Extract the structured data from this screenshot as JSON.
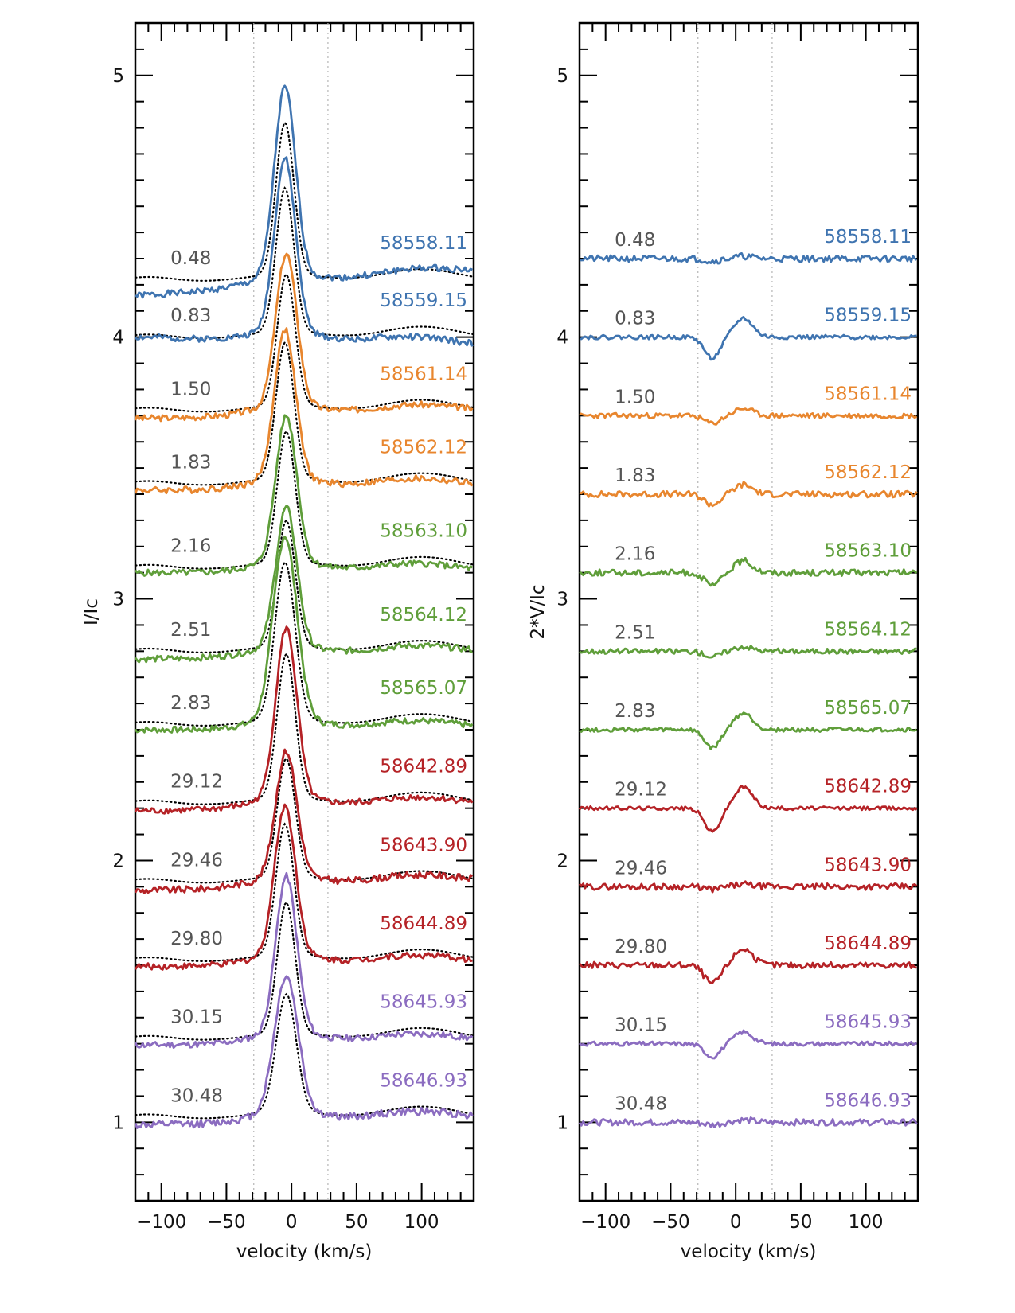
{
  "chart_data": [
    {
      "type": "line",
      "panel": "stokes-I",
      "xlabel": "velocity (km/s)",
      "ylabel": "I/Ic",
      "xlim": [
        -120,
        140
      ],
      "ylim": [
        0.7,
        5.2
      ],
      "xticks": [
        -100,
        -50,
        0,
        50,
        100
      ],
      "xtick_labels": [
        "−100",
        "−50",
        "0",
        "50",
        "100"
      ],
      "yticks": [
        1,
        2,
        3,
        4,
        5
      ],
      "ytick_labels": [
        "1",
        "2",
        "3",
        "4",
        "5"
      ],
      "reference_lines": [
        -29,
        28
      ],
      "model_line_style": "dotted black",
      "series": [
        {
          "date": "58558.11",
          "phase": "0.48",
          "color": "#3f74b0",
          "offset": 4.2,
          "peak": 0.72,
          "center": -5,
          "width": 8,
          "slope": 0.4,
          "noise": 0.012,
          "seed": 1,
          "model_peak": 0.58
        },
        {
          "date": "58559.15",
          "phase": "0.83",
          "color": "#3f74b0",
          "offset": 3.98,
          "peak": 0.66,
          "center": -5,
          "width": 8,
          "slope": -0.2,
          "noise": 0.012,
          "seed": 2,
          "model_peak": 0.55
        },
        {
          "date": "58561.14",
          "phase": "1.50",
          "color": "#e8862e",
          "offset": 3.7,
          "peak": 0.58,
          "center": -4,
          "width": 8,
          "slope": 0.1,
          "noise": 0.012,
          "seed": 3,
          "model_peak": 0.5
        },
        {
          "date": "58562.12",
          "phase": "1.83",
          "color": "#e8862e",
          "offset": 3.42,
          "peak": 0.57,
          "center": -5,
          "width": 8,
          "slope": 0.05,
          "noise": 0.013,
          "seed": 4,
          "model_peak": 0.52
        },
        {
          "date": "58563.10",
          "phase": "2.16",
          "color": "#5f9e3a",
          "offset": 3.1,
          "peak": 0.56,
          "center": -4,
          "width": 8,
          "slope": 0.0,
          "noise": 0.012,
          "seed": 5,
          "model_peak": 0.5
        },
        {
          "date": "58564.12",
          "phase": "2.51",
          "color": "#5f9e3a",
          "offset": 2.78,
          "peak": 0.53,
          "center": -4,
          "width": 8,
          "slope": 0.1,
          "noise": 0.012,
          "seed": 6,
          "model_peak": 0.48
        },
        {
          "date": "58565.07",
          "phase": "2.83",
          "color": "#5f9e3a",
          "offset": 2.5,
          "peak": 0.7,
          "center": -5,
          "width": 9,
          "slope": 0.0,
          "noise": 0.012,
          "seed": 7,
          "model_peak": 0.6
        },
        {
          "date": "58642.89",
          "phase": "29.12",
          "color": "#b52226",
          "offset": 2.2,
          "peak": 0.65,
          "center": -4,
          "width": 8,
          "slope": 0.1,
          "noise": 0.012,
          "seed": 8,
          "model_peak": 0.55
        },
        {
          "date": "58643.90",
          "phase": "29.46",
          "color": "#b52226",
          "offset": 1.9,
          "peak": 0.48,
          "center": -4,
          "width": 8,
          "slope": 0.15,
          "noise": 0.013,
          "seed": 9,
          "model_peak": 0.45
        },
        {
          "date": "58644.89",
          "phase": "29.80",
          "color": "#b52226",
          "offset": 1.6,
          "peak": 0.57,
          "center": -5,
          "width": 8,
          "slope": 0.05,
          "noise": 0.012,
          "seed": 10,
          "model_peak": 0.5
        },
        {
          "date": "58645.93",
          "phase": "30.15",
          "color": "#8b6cc0",
          "offset": 1.3,
          "peak": 0.6,
          "center": -4,
          "width": 8,
          "slope": 0.05,
          "noise": 0.012,
          "seed": 11,
          "model_peak": 0.5
        },
        {
          "date": "58646.93",
          "phase": "30.48",
          "color": "#8b6cc0",
          "offset": 1.0,
          "peak": 0.52,
          "center": -4,
          "width": 9,
          "slope": 0.1,
          "noise": 0.014,
          "seed": 12,
          "model_peak": 0.45
        }
      ]
    },
    {
      "type": "line",
      "panel": "stokes-V",
      "xlabel": "velocity (km/s)",
      "ylabel": "2*V/Ic",
      "xlim": [
        -120,
        140
      ],
      "ylim": [
        0.7,
        5.2
      ],
      "xticks": [
        -100,
        -50,
        0,
        50,
        100
      ],
      "xtick_labels": [
        "−100",
        "−50",
        "0",
        "50",
        "100"
      ],
      "yticks": [
        1,
        2,
        3,
        4,
        5
      ],
      "ytick_labels": [
        "1",
        "2",
        "3",
        "4",
        "5"
      ],
      "reference_lines": [
        -29,
        28
      ],
      "series": [
        {
          "date": "58558.11",
          "phase": "0.48",
          "color": "#3f74b0",
          "offset": 4.3,
          "signature": 0.01,
          "noise": 0.012,
          "seed": 21
        },
        {
          "date": "58559.15",
          "phase": "0.83",
          "color": "#3f74b0",
          "offset": 4.0,
          "signature": 0.08,
          "noise": 0.008,
          "seed": 22
        },
        {
          "date": "58561.14",
          "phase": "1.50",
          "color": "#e8862e",
          "offset": 3.7,
          "signature": 0.03,
          "noise": 0.01,
          "seed": 23
        },
        {
          "date": "58562.12",
          "phase": "1.83",
          "color": "#e8862e",
          "offset": 3.4,
          "signature": 0.04,
          "noise": 0.012,
          "seed": 24
        },
        {
          "date": "58563.10",
          "phase": "2.16",
          "color": "#5f9e3a",
          "offset": 3.1,
          "signature": 0.05,
          "noise": 0.012,
          "seed": 25
        },
        {
          "date": "58564.12",
          "phase": "2.51",
          "color": "#5f9e3a",
          "offset": 2.8,
          "signature": 0.02,
          "noise": 0.01,
          "seed": 26
        },
        {
          "date": "58565.07",
          "phase": "2.83",
          "color": "#5f9e3a",
          "offset": 2.5,
          "signature": 0.07,
          "noise": 0.008,
          "seed": 27
        },
        {
          "date": "58642.89",
          "phase": "29.12",
          "color": "#b52226",
          "offset": 2.2,
          "signature": 0.09,
          "noise": 0.007,
          "seed": 28
        },
        {
          "date": "58643.90",
          "phase": "29.46",
          "color": "#b52226",
          "offset": 1.9,
          "signature": 0.01,
          "noise": 0.012,
          "seed": 29
        },
        {
          "date": "58644.89",
          "phase": "29.80",
          "color": "#b52226",
          "offset": 1.6,
          "signature": 0.07,
          "noise": 0.012,
          "seed": 30
        },
        {
          "date": "58645.93",
          "phase": "30.15",
          "color": "#8b6cc0",
          "offset": 1.3,
          "signature": 0.05,
          "noise": 0.008,
          "seed": 31
        },
        {
          "date": "58646.93",
          "phase": "30.48",
          "color": "#8b6cc0",
          "offset": 1.0,
          "signature": 0.01,
          "noise": 0.012,
          "seed": 32
        }
      ]
    }
  ]
}
